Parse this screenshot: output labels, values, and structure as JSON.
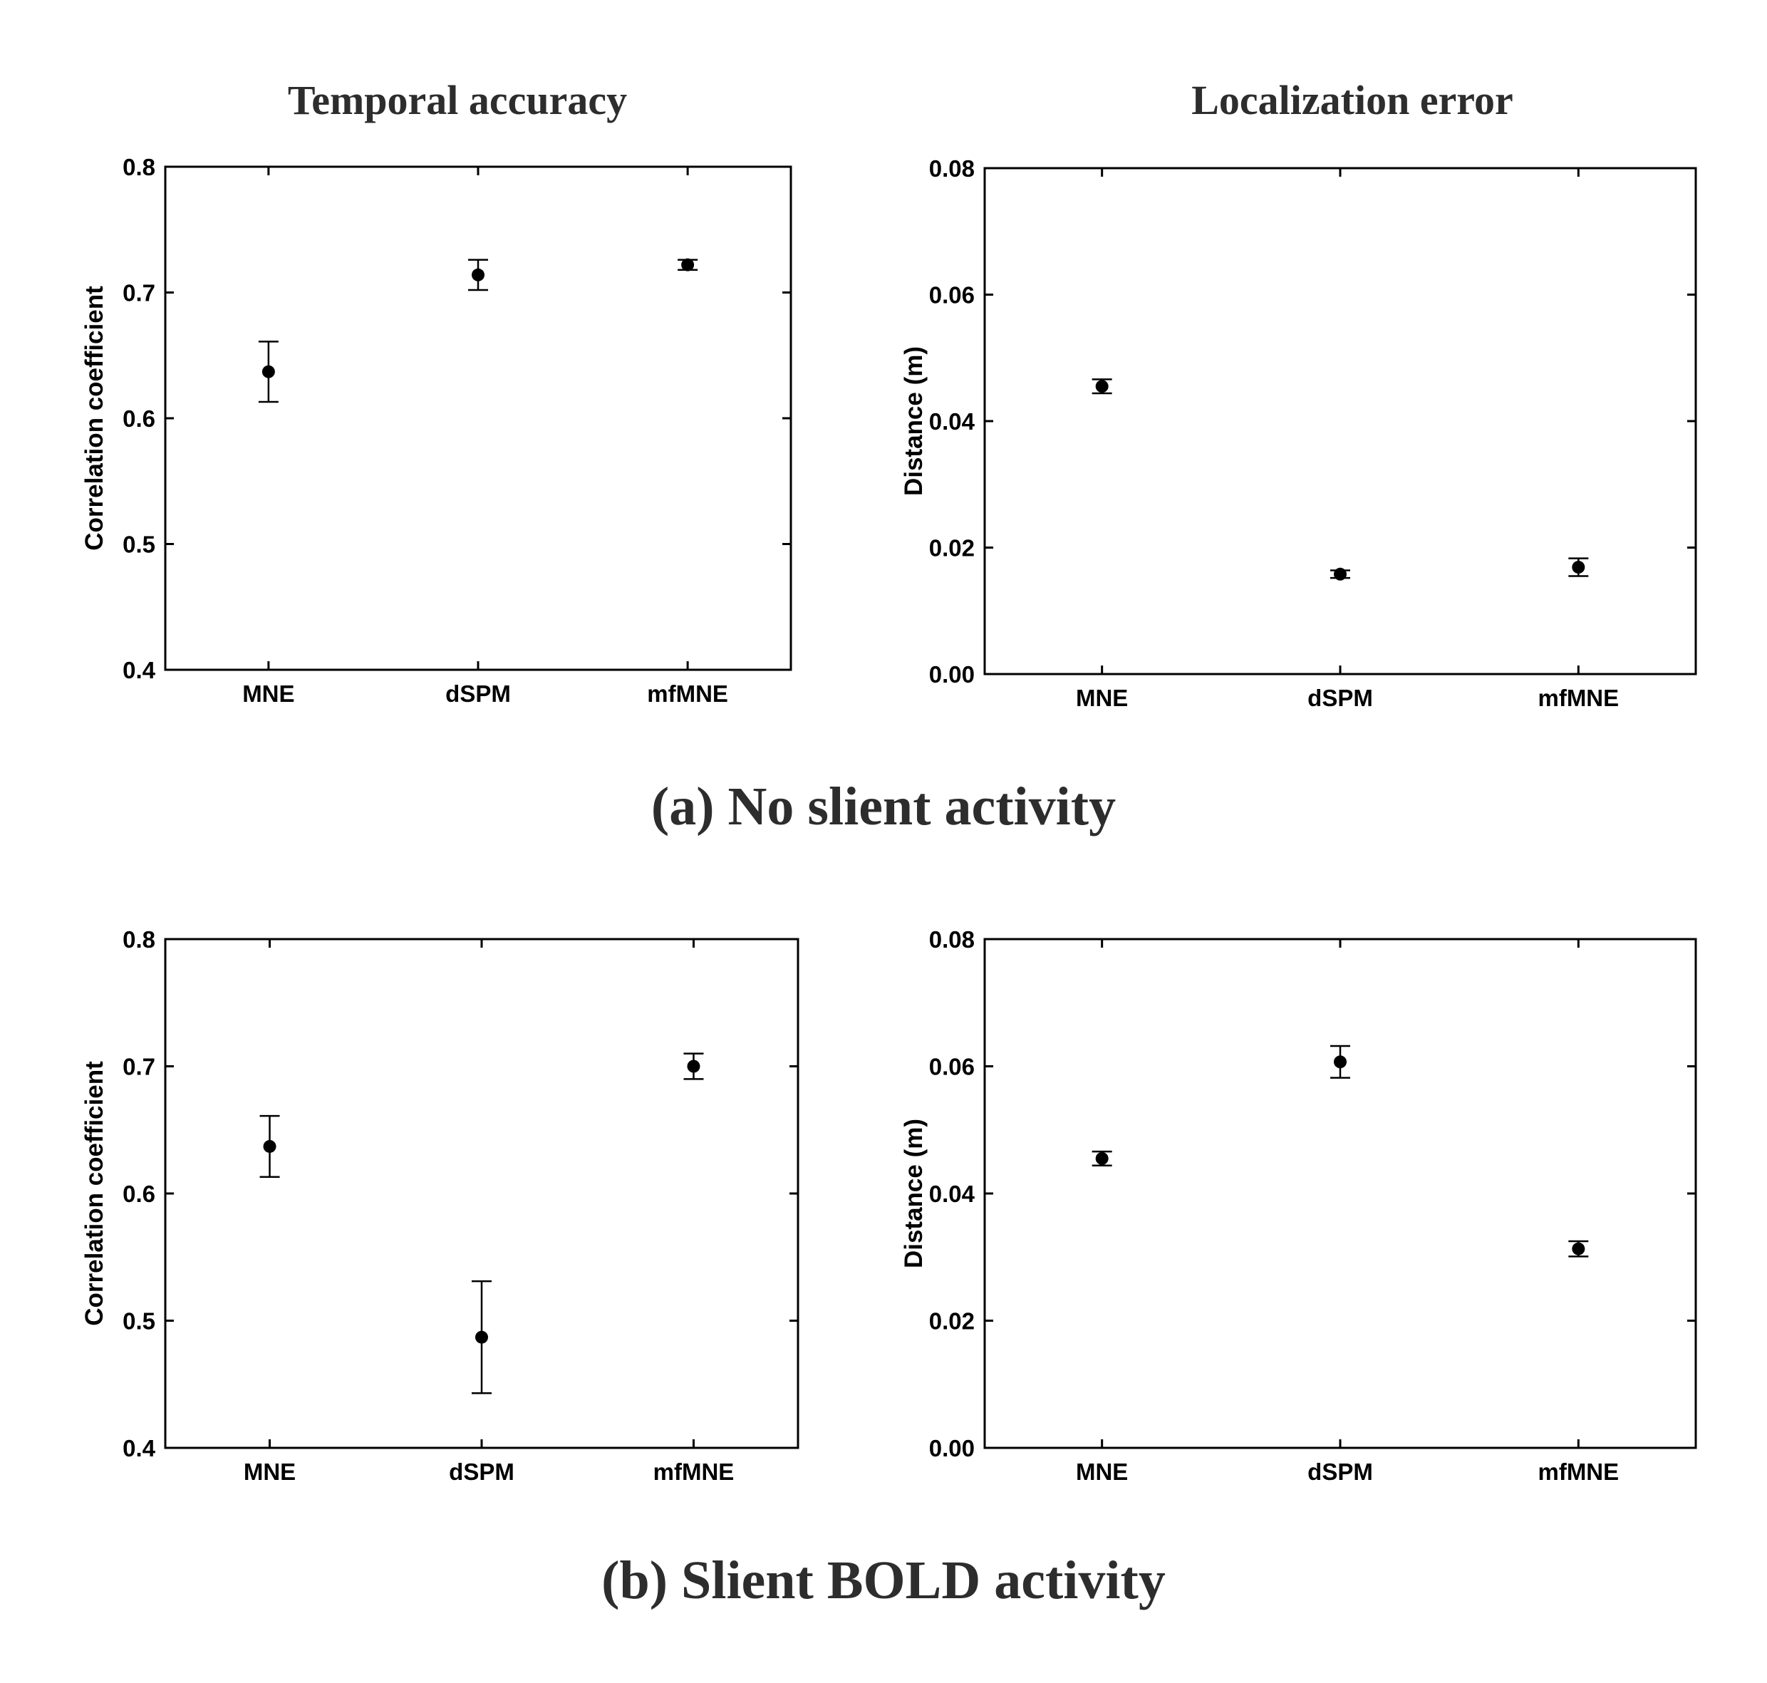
{
  "columns": {
    "left_title": "Temporal accuracy",
    "right_title": "Localization error"
  },
  "captions": {
    "top": "(a) No slient activity",
    "bottom": "(b) Slient BOLD activity"
  },
  "chart_data": [
    {
      "type": "scatter",
      "panel": "a-temporal",
      "xlabel": "",
      "ylabel": "Correlation coefficient",
      "categories": [
        "MNE",
        "dSPM",
        "mfMNE"
      ],
      "values": [
        0.637,
        0.714,
        0.722
      ],
      "err_low": [
        0.613,
        0.702,
        0.718
      ],
      "err_high": [
        0.661,
        0.726,
        0.726
      ],
      "ylim": [
        0.4,
        0.8
      ],
      "yticks": [
        "0.4",
        "0.5",
        "0.6",
        "0.7",
        "0.8"
      ],
      "grid": false
    },
    {
      "type": "scatter",
      "panel": "a-localization",
      "xlabel": "",
      "ylabel": "Distance (m)",
      "categories": [
        "MNE",
        "dSPM",
        "mfMNE"
      ],
      "values": [
        0.0455,
        0.0158,
        0.0169
      ],
      "err_low": [
        0.0444,
        0.0152,
        0.0155
      ],
      "err_high": [
        0.0466,
        0.0164,
        0.0183
      ],
      "ylim": [
        0.0,
        0.08
      ],
      "yticks": [
        "0.00",
        "0.02",
        "0.04",
        "0.06",
        "0.08"
      ],
      "grid": false
    },
    {
      "type": "scatter",
      "panel": "b-temporal",
      "xlabel": "",
      "ylabel": "Correlation coefficient",
      "categories": [
        "MNE",
        "dSPM",
        "mfMNE"
      ],
      "values": [
        0.637,
        0.487,
        0.7
      ],
      "err_low": [
        0.613,
        0.443,
        0.69
      ],
      "err_high": [
        0.661,
        0.531,
        0.71
      ],
      "ylim": [
        0.4,
        0.8
      ],
      "yticks": [
        "0.4",
        "0.5",
        "0.6",
        "0.7",
        "0.8"
      ],
      "grid": false
    },
    {
      "type": "scatter",
      "panel": "b-localization",
      "xlabel": "",
      "ylabel": "Distance (m)",
      "categories": [
        "MNE",
        "dSPM",
        "mfMNE"
      ],
      "values": [
        0.0455,
        0.0607,
        0.0313
      ],
      "err_low": [
        0.0444,
        0.0582,
        0.0301
      ],
      "err_high": [
        0.0466,
        0.0632,
        0.0325
      ],
      "ylim": [
        0.0,
        0.08
      ],
      "yticks": [
        "0.00",
        "0.02",
        "0.04",
        "0.06",
        "0.08"
      ],
      "grid": false
    }
  ]
}
